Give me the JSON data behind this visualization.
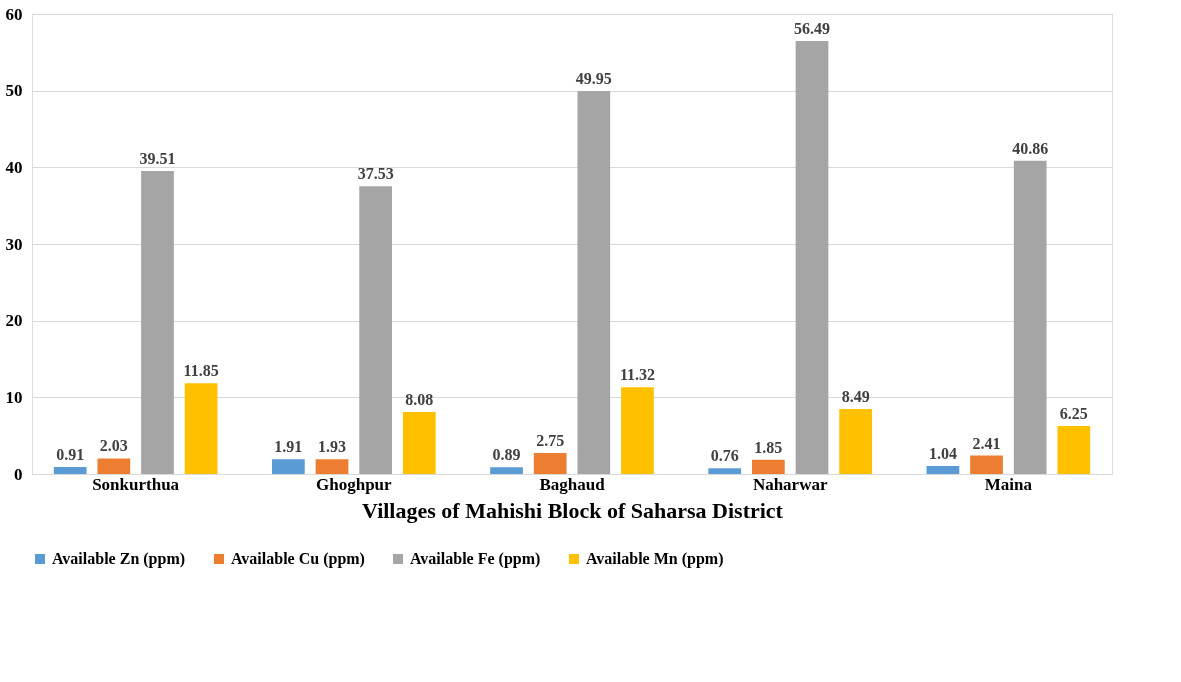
{
  "chart_data": {
    "type": "bar",
    "xlabel": "Villages of Mahishi Block of Saharsa   District",
    "categories": [
      "Sonkurthua",
      "Ghoghpur",
      "Baghaud",
      "Naharwar",
      "Maina"
    ],
    "series": [
      {
        "name": "Available Zn (ppm)",
        "color": "#5b9bd5",
        "values": [
          0.91,
          1.91,
          0.89,
          0.76,
          1.04
        ]
      },
      {
        "name": "Available Cu (ppm)",
        "color": "#ed7d31",
        "values": [
          2.03,
          1.93,
          2.75,
          1.85,
          2.41
        ]
      },
      {
        "name": "Available Fe (ppm)",
        "color": "#a5a5a5",
        "values": [
          39.51,
          37.53,
          49.95,
          56.49,
          40.86
        ]
      },
      {
        "name": "Available Mn (ppm)",
        "color": "#ffc000",
        "values": [
          11.85,
          8.08,
          11.32,
          8.49,
          6.25
        ]
      }
    ],
    "ylim": [
      0,
      60
    ],
    "yticks": [
      0,
      10,
      20,
      30,
      40,
      50,
      60
    ],
    "grid": "y",
    "legend": "bottom",
    "data_labels": true
  }
}
